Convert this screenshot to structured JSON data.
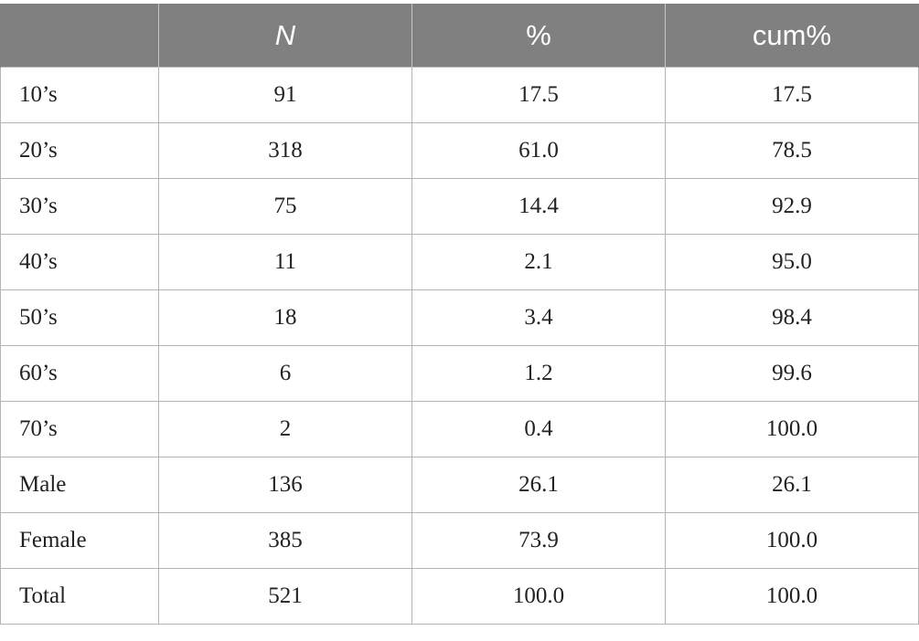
{
  "table": {
    "headers": [
      "",
      "N",
      "%",
      "cum%"
    ],
    "rows": [
      [
        "10’s",
        "91",
        "17.5",
        "17.5"
      ],
      [
        "20’s",
        "318",
        "61.0",
        "78.5"
      ],
      [
        "30’s",
        "75",
        "14.4",
        "92.9"
      ],
      [
        "40’s",
        "11",
        "2.1",
        "95.0"
      ],
      [
        "50’s",
        "18",
        "3.4",
        "98.4"
      ],
      [
        "60’s",
        "6",
        "1.2",
        "99.6"
      ],
      [
        "70’s",
        "2",
        "0.4",
        "100.0"
      ],
      [
        "Male",
        "136",
        "26.1",
        "26.1"
      ],
      [
        "Female",
        "385",
        "73.9",
        "100.0"
      ],
      [
        "Total",
        "521",
        "100.0",
        "100.0"
      ]
    ]
  },
  "colors": {
    "header_background": "#808080",
    "header_text": "#ffffff",
    "grid_line": "#b4b4b4"
  }
}
